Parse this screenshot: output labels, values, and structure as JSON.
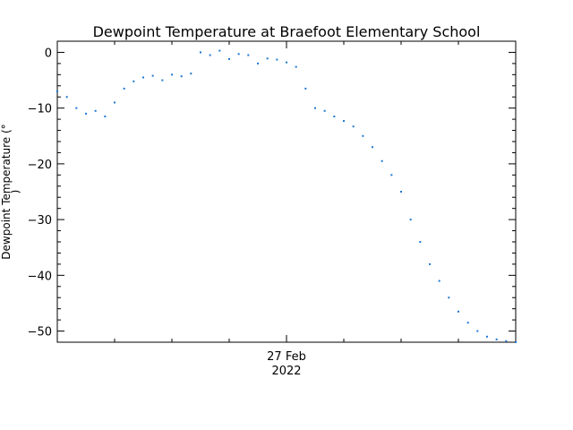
{
  "chart_data": {
    "type": "scatter",
    "title": "Dewpoint Temperature at Braefoot Elementary School",
    "ylabel_line1": "Dewpoint Temperature (°",
    "ylabel_line2": ")",
    "xlabel": "",
    "x_tick_label_line1": "27 Feb",
    "x_tick_label_line2": "2022",
    "x_tick_hour": 24,
    "xlim_hours": [
      0,
      48
    ],
    "ylim": [
      -52,
      2
    ],
    "y_major_ticks": [
      0,
      -10,
      -20,
      -30,
      -40,
      -50
    ],
    "y_tick_labels": [
      "0",
      "−10",
      "−20",
      "−30",
      "−40",
      "−50"
    ],
    "grid": false,
    "marker_color": "#1f77d4",
    "series": [
      {
        "x": [
          0,
          1,
          2,
          3,
          4,
          5,
          6,
          7,
          8,
          9,
          10,
          11,
          12,
          13,
          14,
          15,
          16,
          17,
          18,
          19,
          20,
          21,
          22,
          23,
          24,
          25,
          26,
          27,
          28,
          29,
          30,
          31,
          32,
          33,
          34,
          35,
          36,
          37,
          38,
          39,
          40,
          41,
          42,
          43,
          44,
          45,
          46,
          47,
          48
        ],
        "y": [
          -7,
          -8,
          -10,
          -11,
          -10.5,
          -11.5,
          -9,
          -6.5,
          -5.2,
          -4.5,
          -4.2,
          -5,
          -4,
          -4.3,
          -3.8,
          0,
          -0.5,
          0.3,
          -1.2,
          -0.3,
          -0.5,
          -2,
          -1.1,
          -1.3,
          -1.8,
          -2.6,
          -6.5,
          -10,
          -10.5,
          -11.5,
          -12.3,
          -13.3,
          -15,
          -17,
          -19.5,
          -22,
          -25,
          -30,
          -34,
          -38,
          -41,
          -44,
          -46.5,
          -48.5,
          -50,
          -51,
          -51.5,
          -51.8,
          -52
        ]
      }
    ]
  }
}
